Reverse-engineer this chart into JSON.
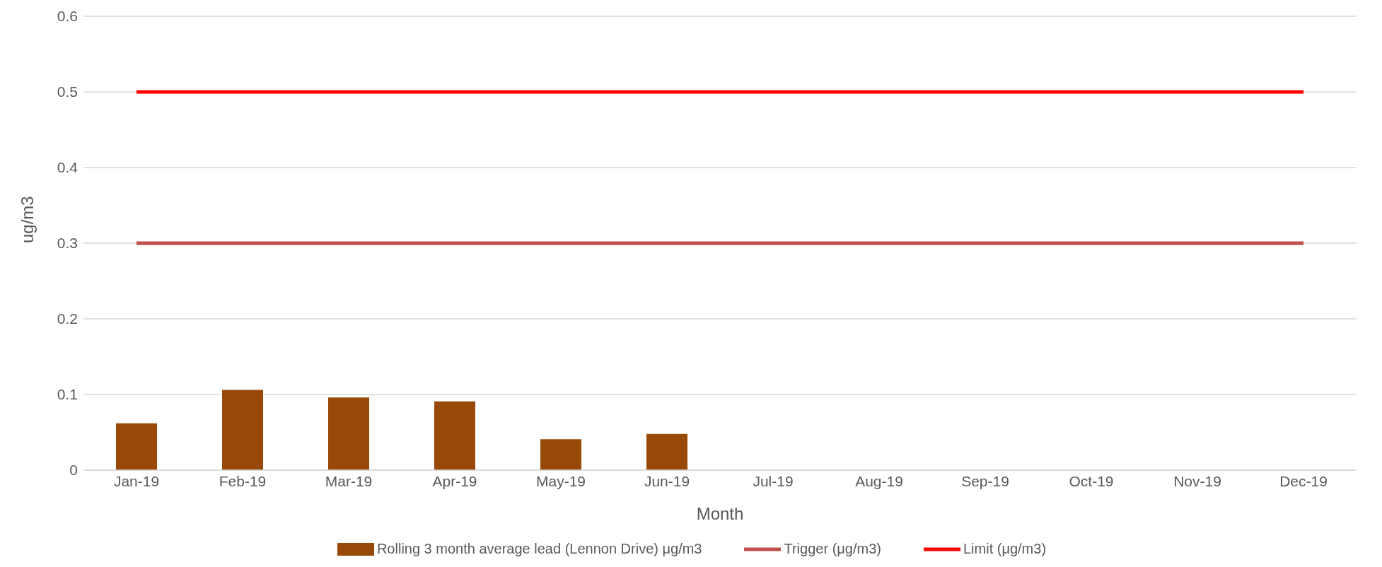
{
  "chart_data": {
    "type": "bar",
    "xlabel": "Month",
    "ylabel": "ug/m3",
    "categories": [
      "Jan-19",
      "Feb-19",
      "Mar-19",
      "Apr-19",
      "May-19",
      "Jun-19",
      "Jul-19",
      "Aug-19",
      "Sep-19",
      "Oct-19",
      "Nov-19",
      "Dec-19"
    ],
    "series": [
      {
        "name": "Rolling 3 month average lead (Lennon Drive) μg/m3",
        "color": "#984807",
        "values": [
          0.062,
          0.106,
          0.096,
          0.091,
          0.041,
          0.048,
          null,
          null,
          null,
          null,
          null,
          null
        ]
      },
      {
        "name": "Trigger (μg/m3)",
        "type": "line",
        "color": "#c0504d",
        "values": [
          0.3,
          0.3,
          0.3,
          0.3,
          0.3,
          0.3,
          0.3,
          0.3,
          0.3,
          0.3,
          0.3,
          0.3
        ]
      },
      {
        "name": "Limit (μg/m3)",
        "type": "line",
        "color": "#ff0000",
        "values": [
          0.5,
          0.5,
          0.5,
          0.5,
          0.5,
          0.5,
          0.5,
          0.5,
          0.5,
          0.5,
          0.5,
          0.5
        ]
      }
    ],
    "ylim": [
      0,
      0.6
    ],
    "yticks": [
      0,
      0.1,
      0.2,
      0.3,
      0.4,
      0.5,
      0.6
    ],
    "grid": "y",
    "legend": "bottom",
    "marker": "none",
    "line_style": "solid"
  }
}
